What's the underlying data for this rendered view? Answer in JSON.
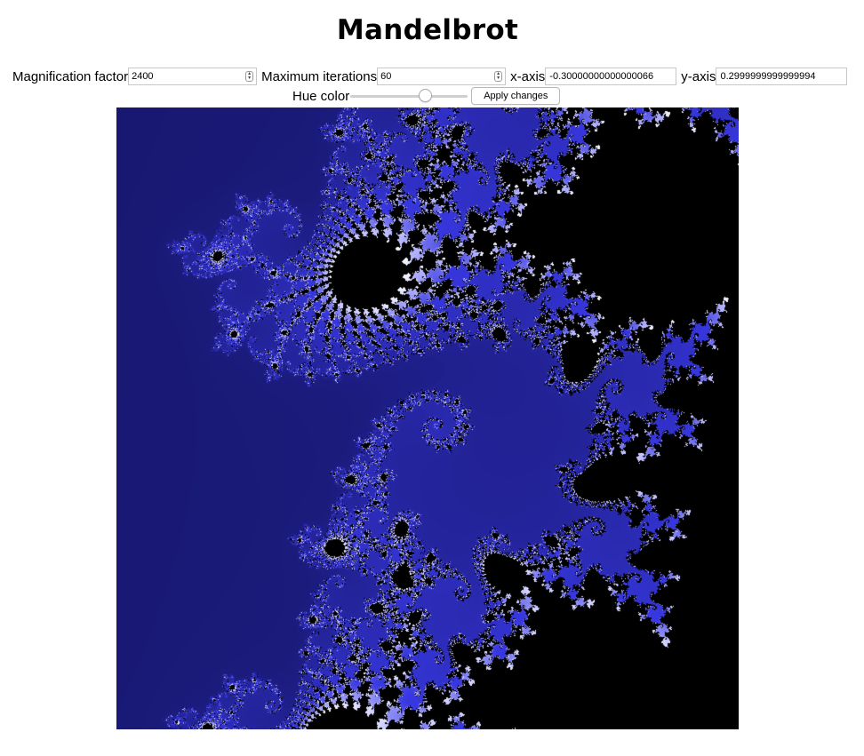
{
  "header": {
    "title": "Mandelbrot"
  },
  "controls": {
    "magnification": {
      "label": "Magnification factor",
      "value": "2400"
    },
    "max_iterations": {
      "label": "Maximum iterations",
      "value": "60"
    },
    "x_axis": {
      "label": "x-axis",
      "value": "-0.30000000000000066"
    },
    "y_axis": {
      "label": "y-axis",
      "value": "0.2999999999999994"
    },
    "hue": {
      "label": "Hue color",
      "value": 0.65
    },
    "apply_label": "Apply changes"
  },
  "fractal": {
    "description_colors": {
      "set": "#000000",
      "edge": "#3a3aff",
      "deep": "#05051a"
    }
  }
}
